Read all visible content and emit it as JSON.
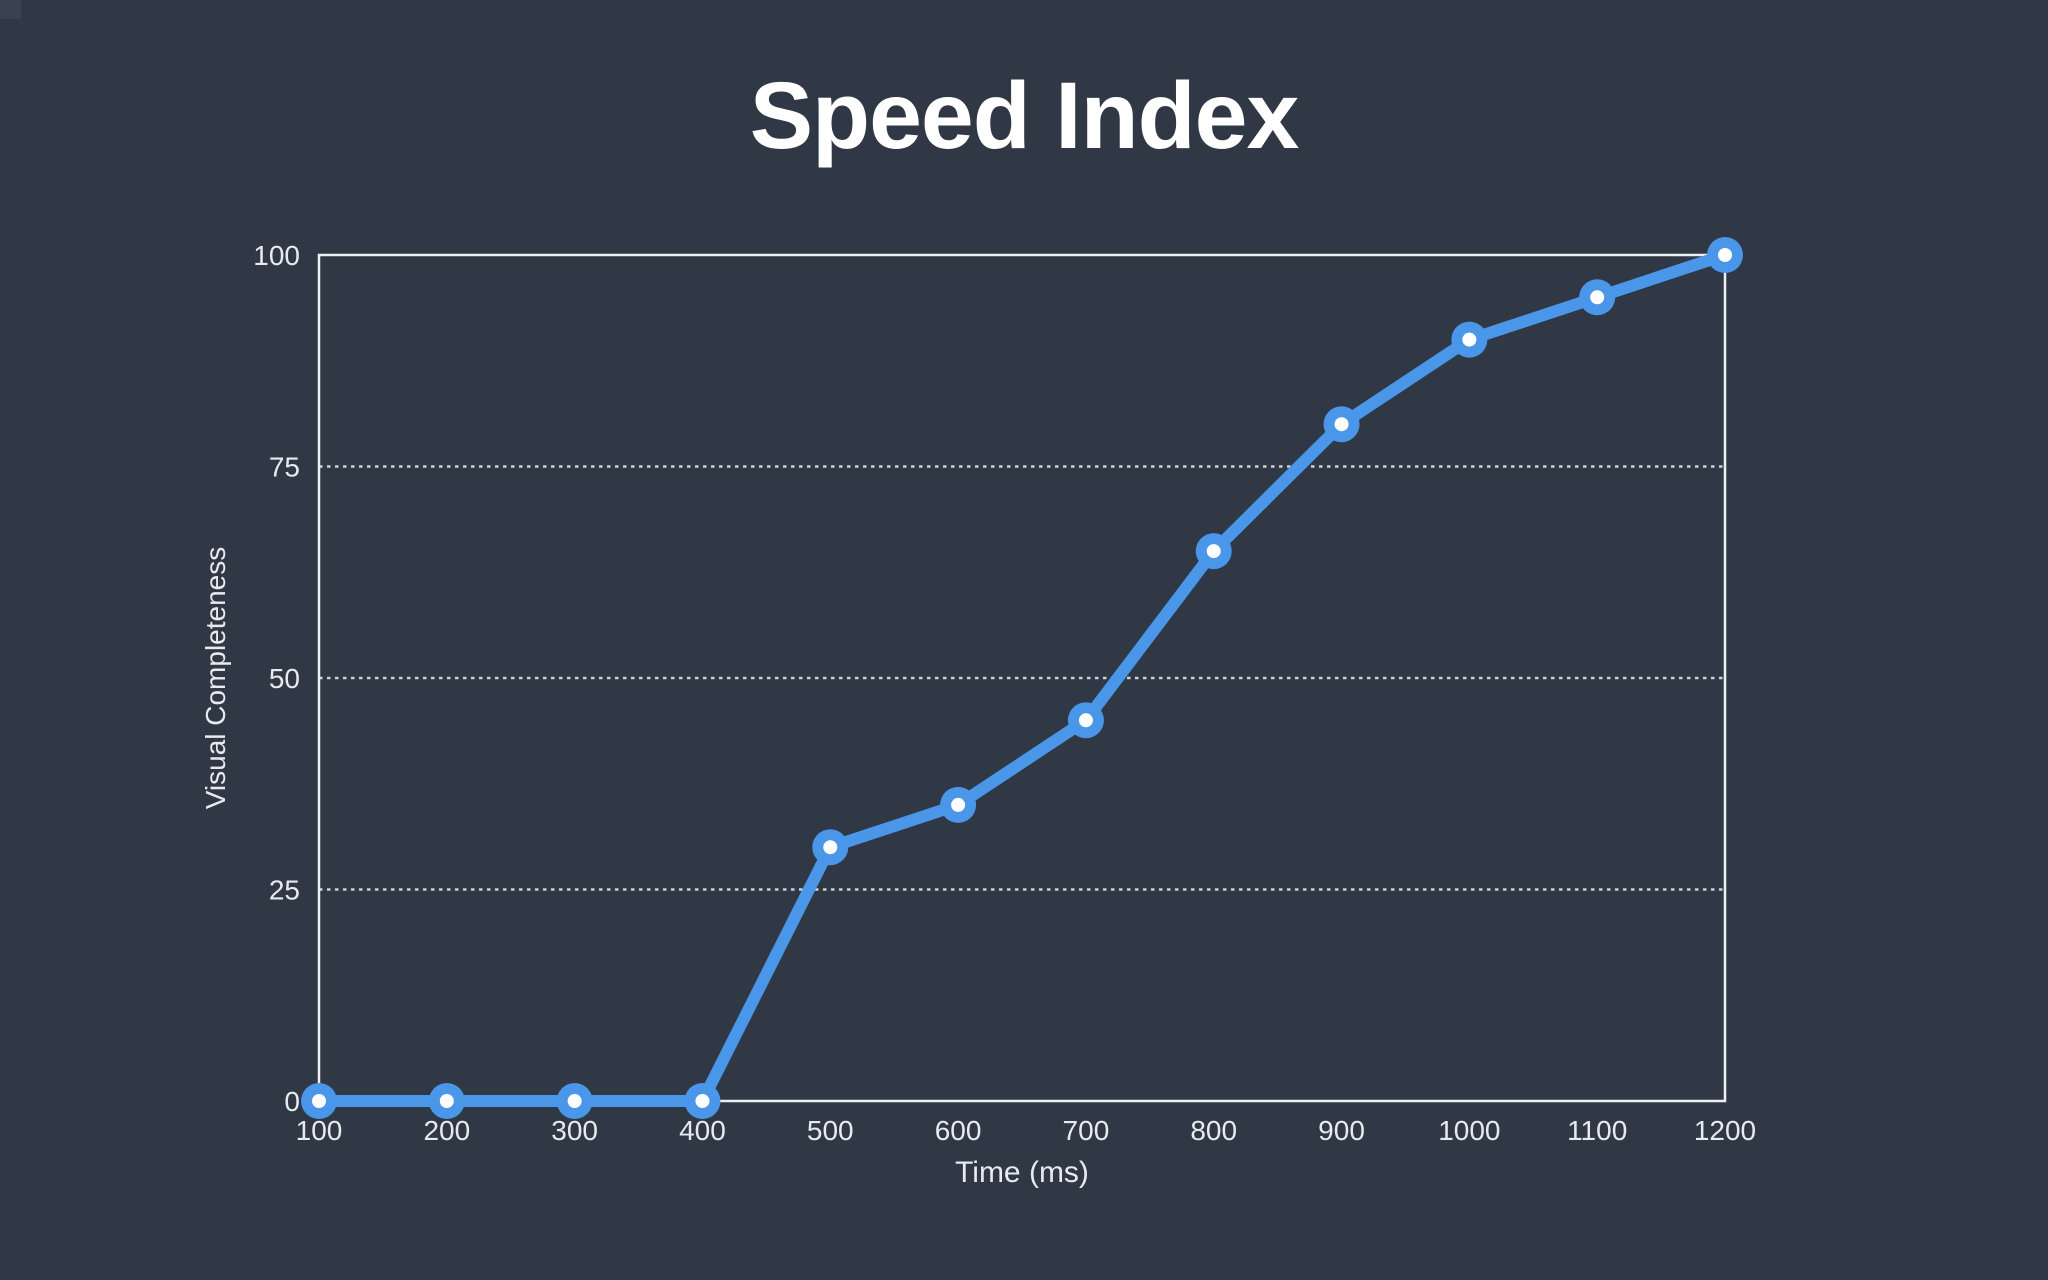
{
  "header": {
    "title": "Speed Index"
  },
  "chart_data": {
    "type": "line",
    "title": "Speed Index",
    "xlabel": "Time (ms)",
    "ylabel": "Visual Completeness",
    "x": [
      100,
      200,
      300,
      400,
      500,
      600,
      700,
      800,
      900,
      1000,
      1100,
      1200
    ],
    "series": [
      {
        "name": "Visual Completeness",
        "values": [
          0,
          0,
          0,
          0,
          30,
          35,
          45,
          65,
          80,
          90,
          95,
          100
        ]
      }
    ],
    "xlim": [
      100,
      1200
    ],
    "ylim": [
      0,
      100
    ],
    "x_ticks": [
      100,
      200,
      300,
      400,
      500,
      600,
      700,
      800,
      900,
      1000,
      1100,
      1200
    ],
    "y_ticks": [
      0,
      25,
      50,
      75,
      100
    ],
    "grid": {
      "horizontal_dotted_at": [
        25,
        50,
        75
      ],
      "solid_plot_border": true
    },
    "legend_position": "none",
    "colors": {
      "background": "#2f3844",
      "corner_artifact": "#3a4150",
      "line": "#4a96e8",
      "marker_ring": "#4a96e8",
      "marker_center": "#ffffff",
      "axis": "#eef1f4",
      "gridline": "#dfe3e8",
      "tick_text": "#e7eaee",
      "title_text": "#ffffff"
    }
  }
}
